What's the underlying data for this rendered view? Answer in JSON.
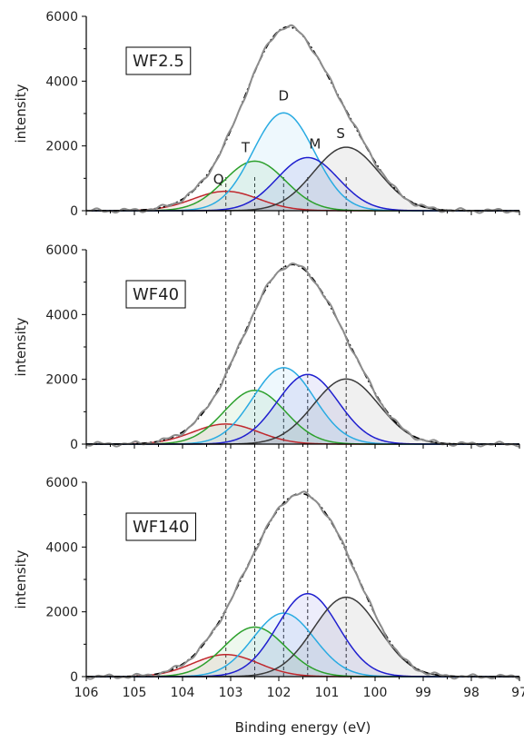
{
  "chart_data": [
    {
      "type": "line",
      "title": "",
      "sample_label": "WF2.5",
      "ylabel": "intensity",
      "xlabel": "",
      "xlim": [
        106,
        97
      ],
      "x_reversed": true,
      "ylim": [
        0,
        6000
      ],
      "yticks": [
        0,
        2000,
        4000,
        6000
      ],
      "grid": false,
      "legend": "none",
      "components": [
        {
          "label": "Q",
          "center": 103.1,
          "height": 600,
          "fwhm": 1.6,
          "color": "#c0282d"
        },
        {
          "label": "T",
          "center": 102.5,
          "height": 1530,
          "fwhm": 1.5,
          "color": "#2ca02c"
        },
        {
          "label": "D",
          "center": 101.9,
          "height": 3020,
          "fwhm": 1.5,
          "color": "#29abe2"
        },
        {
          "label": "M",
          "center": 101.4,
          "height": 1640,
          "fwhm": 1.5,
          "color": "#1f1fcf"
        },
        {
          "label": "S",
          "center": 100.6,
          "height": 1960,
          "fwhm": 1.6,
          "color": "#3a3a3a"
        }
      ],
      "envelope": {
        "color": "#8c8c8c"
      },
      "fit": {
        "color": "#000000",
        "dash": "dashdot"
      },
      "dashed_lines_at": [
        103.1,
        102.5,
        101.9,
        101.4,
        100.6
      ]
    },
    {
      "type": "line",
      "title": "",
      "sample_label": "WF40",
      "ylabel": "intensity",
      "xlabel": "",
      "xlim": [
        106,
        97
      ],
      "x_reversed": true,
      "ylim": [
        0,
        6000
      ],
      "yticks": [
        0,
        2000,
        4000,
        6000
      ],
      "grid": false,
      "legend": "none",
      "components": [
        {
          "label": "",
          "center": 103.1,
          "height": 620,
          "fwhm": 1.6,
          "color": "#c0282d"
        },
        {
          "label": "",
          "center": 102.5,
          "height": 1660,
          "fwhm": 1.5,
          "color": "#2ca02c"
        },
        {
          "label": "",
          "center": 101.9,
          "height": 2360,
          "fwhm": 1.5,
          "color": "#29abe2"
        },
        {
          "label": "",
          "center": 101.4,
          "height": 2150,
          "fwhm": 1.5,
          "color": "#1f1fcf"
        },
        {
          "label": "",
          "center": 100.6,
          "height": 2010,
          "fwhm": 1.6,
          "color": "#3a3a3a"
        }
      ],
      "envelope": {
        "color": "#8c8c8c"
      },
      "fit": {
        "color": "#000000",
        "dash": "dashdot"
      },
      "dashed_lines_at": [
        103.1,
        102.5,
        101.9,
        101.4,
        100.6
      ]
    },
    {
      "type": "line",
      "title": "",
      "sample_label": "WF140",
      "ylabel": "intensity",
      "xlabel": "Binding energy (eV)",
      "xlim": [
        106,
        97
      ],
      "x_reversed": true,
      "xticks": [
        106,
        105,
        104,
        103,
        102,
        101,
        100,
        99,
        98,
        97
      ],
      "ylim": [
        0,
        6000
      ],
      "yticks": [
        0,
        2000,
        4000,
        6000
      ],
      "grid": false,
      "legend": "none",
      "components": [
        {
          "label": "",
          "center": 103.1,
          "height": 680,
          "fwhm": 1.6,
          "color": "#c0282d"
        },
        {
          "label": "",
          "center": 102.5,
          "height": 1530,
          "fwhm": 1.5,
          "color": "#2ca02c"
        },
        {
          "label": "",
          "center": 101.9,
          "height": 1960,
          "fwhm": 1.5,
          "color": "#29abe2"
        },
        {
          "label": "",
          "center": 101.4,
          "height": 2560,
          "fwhm": 1.5,
          "color": "#1f1fcf"
        },
        {
          "label": "",
          "center": 100.6,
          "height": 2450,
          "fwhm": 1.6,
          "color": "#3a3a3a"
        }
      ],
      "envelope": {
        "color": "#8c8c8c"
      },
      "fit": {
        "color": "#000000",
        "dash": "dashdot"
      },
      "dashed_lines_at": [
        103.1,
        102.5,
        101.9,
        101.4,
        100.6
      ]
    }
  ]
}
